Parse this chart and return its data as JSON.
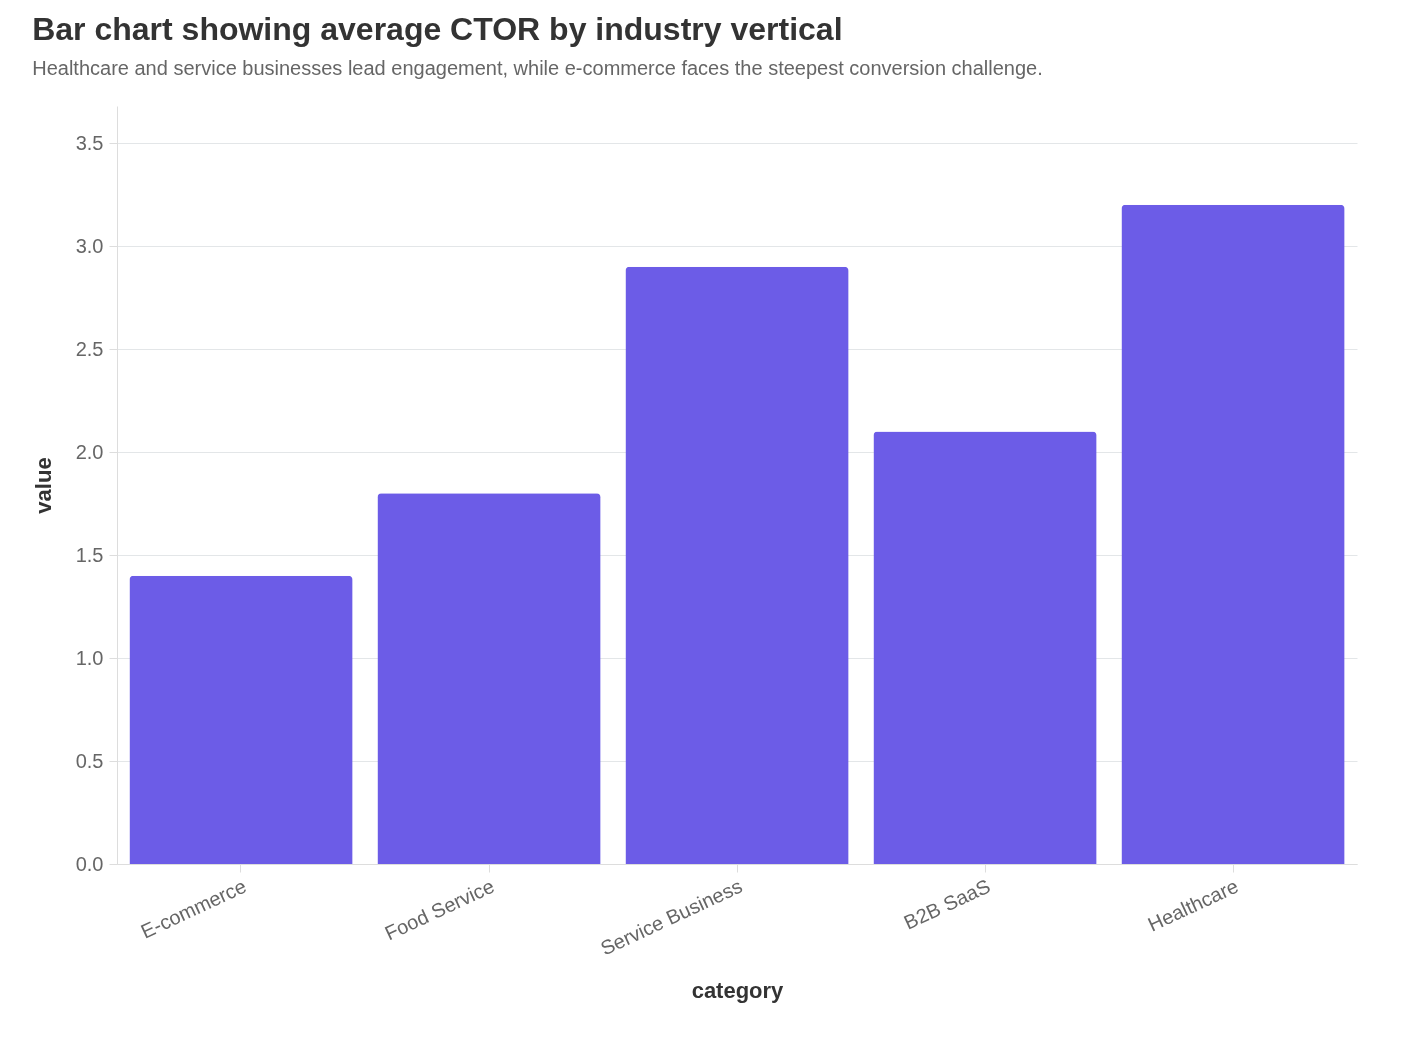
{
  "chart_data": {
    "type": "bar",
    "title": "Bar chart showing average CTOR by industry vertical",
    "subtitle": "Healthcare and service businesses lead engagement, while e-commerce faces the steepest conversion challenge.",
    "xlabel": "category",
    "ylabel": "value",
    "categories": [
      "E-commerce",
      "Food Service",
      "Service Business",
      "B2B SaaS",
      "Healthcare"
    ],
    "values": [
      1.4,
      1.8,
      2.9,
      2.1,
      3.2
    ],
    "color": "#6c5ce7",
    "ylim": [
      0,
      3.68
    ],
    "yticks": [
      {
        "value": 0,
        "label": "0.0"
      },
      {
        "value": 0.5,
        "label": "0.5"
      },
      {
        "value": 1,
        "label": "1.0"
      },
      {
        "value": 1.5,
        "label": "1.5"
      },
      {
        "value": 2,
        "label": "2.0"
      },
      {
        "value": 2.5,
        "label": "2.5"
      },
      {
        "value": 3,
        "label": "3.0"
      },
      {
        "value": 3.5,
        "label": "3.5"
      }
    ],
    "grid": "y"
  }
}
